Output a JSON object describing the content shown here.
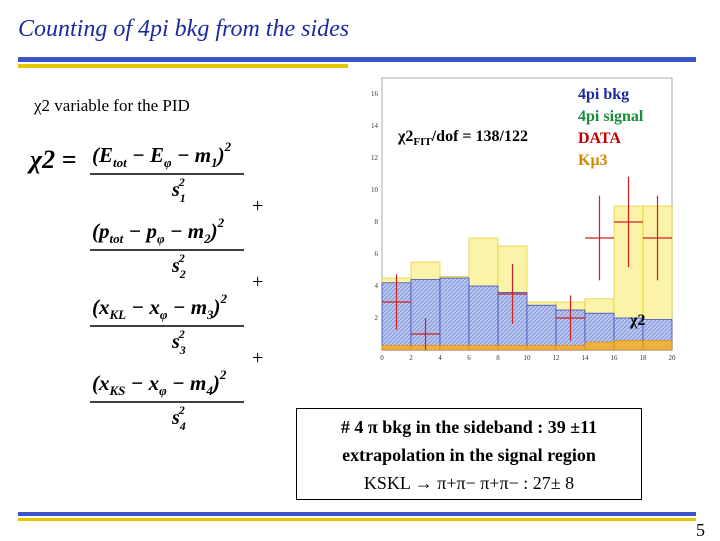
{
  "slide": {
    "title": "Counting of 4pi bkg from the sides",
    "subtitle": "χ2 variable for the PID",
    "page_number": "5"
  },
  "formula": {
    "lhs": "χ2 =",
    "terms": [
      {
        "sign": "",
        "base": "(E",
        "a": "tot",
        "b": "E",
        "b_sub": "φ",
        "m": "m",
        "m_sub": "1",
        "s": "s",
        "s_sub": "1"
      },
      {
        "sign": "+",
        "base": "(p",
        "a": "tot",
        "b": "p",
        "b_sub": "φ",
        "m": "m",
        "m_sub": "2",
        "s": "s",
        "s_sub": "2"
      },
      {
        "sign": "+",
        "base": "(x",
        "a": "KL",
        "b": "x",
        "b_sub": "φ",
        "m": "m",
        "m_sub": "3",
        "s": "s",
        "s_sub": "3"
      },
      {
        "sign": "+",
        "base": "(x",
        "a": "KS",
        "b": "x",
        "b_sub": "φ",
        "m": "m",
        "m_sub": "4",
        "s": "s",
        "s_sub": "4"
      }
    ]
  },
  "plot": {
    "fit_label": "χ2",
    "fit_sub": "FIT",
    "fit_rest": "/dof = 138/122",
    "legend": [
      "4pi bkg",
      "4pi signal",
      "DATA",
      "Kμ3"
    ],
    "xaxis_label": "χ2"
  },
  "chart_data": {
    "type": "bar",
    "xlabel": "χ2",
    "ylabel": "",
    "x_ticks": [
      "0",
      "2",
      "4",
      "6",
      "8",
      "10",
      "12",
      "14",
      "16",
      "18",
      "20"
    ],
    "y_ticks": [
      "2",
      "4",
      "6",
      "8",
      "10",
      "12",
      "14",
      "16"
    ],
    "xlim": [
      0,
      20
    ],
    "ylim": [
      0,
      17
    ],
    "bin_edges": [
      0,
      2,
      4,
      6,
      8,
      10,
      12,
      14,
      16,
      18,
      20
    ],
    "series": [
      {
        "name": "4pi bkg",
        "values": [
          4.2,
          4.4,
          4.5,
          4.0,
          3.6,
          2.8,
          2.5,
          2.3,
          2.0,
          1.9
        ]
      },
      {
        "name": "4pi signal",
        "values": [
          4.5,
          5.5,
          4.6,
          7.0,
          6.5,
          3.0,
          3.0,
          3.2,
          9.0,
          9.0
        ]
      },
      {
        "name": "DATA",
        "values": [
          3,
          1,
          0,
          0,
          3.5,
          0,
          2,
          7,
          8,
          7
        ]
      },
      {
        "name": "Kμ3",
        "values": [
          0.3,
          0.3,
          0.3,
          0.3,
          0.3,
          0.3,
          0.3,
          0.5,
          0.6,
          0.6
        ]
      }
    ]
  },
  "result_box": {
    "line1": "# 4 π bkg in the sideband : 39 ±11",
    "line2": "extrapolation in the signal region",
    "line3": "KSKL → π+π− π+π− : 27± 8"
  }
}
